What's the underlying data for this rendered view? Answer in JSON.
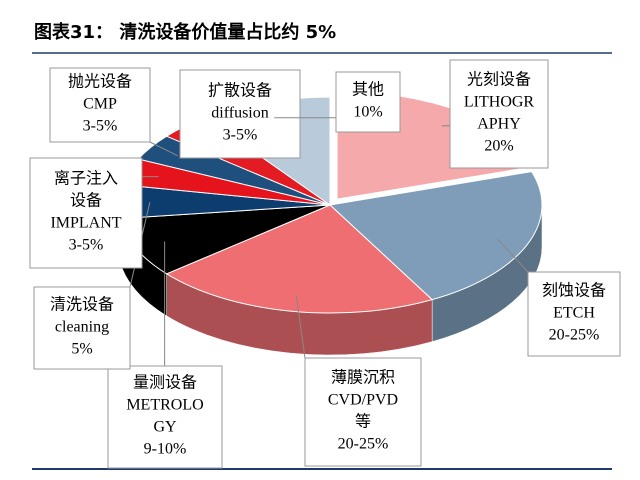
{
  "chart_data": {
    "type": "pie3d",
    "title": "图表31：  清洗设备价值量占比约 5%",
    "categories": [
      [
        "光刻设备",
        "LITHOGR",
        "APHY"
      ],
      [
        "刻蚀设备",
        "ETCH"
      ],
      [
        "薄膜沉积",
        "CVD/PVD",
        "等"
      ],
      [
        "量测设备",
        "METROLO",
        "GY"
      ],
      [
        "清洗设备",
        "cleaning"
      ],
      [
        "离子注入",
        "设备",
        "IMPLANT"
      ],
      [
        "抛光设备",
        "CMP"
      ],
      [
        "扩散设备",
        "diffusion"
      ],
      [
        "其他"
      ]
    ],
    "values": [
      20,
      22,
      22,
      9,
      5,
      4,
      4,
      4,
      10
    ],
    "value_labels": [
      "20%",
      "20-25%",
      "20-25%",
      "9-10%",
      "5%",
      "3-5%",
      "3-5%",
      "3-5%",
      "10%"
    ],
    "colors": [
      "#f5a9ab",
      "#7f9db9",
      "#ee6e72",
      "#000000",
      "#0d3c6e",
      "#e5141c",
      "#1f4f7d",
      "#e31b22",
      "#b9cbdb"
    ]
  }
}
